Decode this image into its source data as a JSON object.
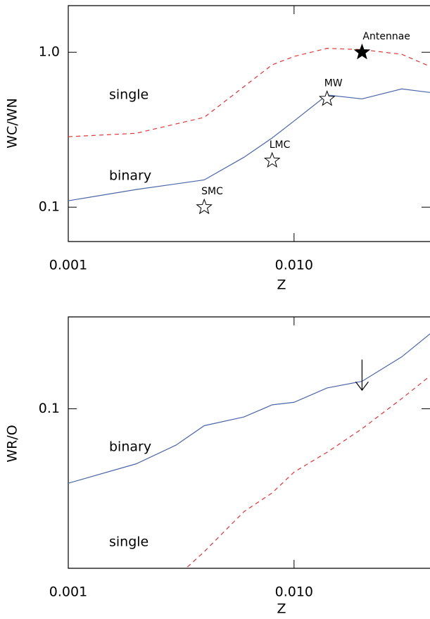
{
  "chart_data": [
    {
      "type": "line",
      "x_label": "Z",
      "y_label": "WC/WN",
      "log_x": true,
      "log_y": true,
      "xlim": [
        0.001,
        0.04
      ],
      "ylim": [
        0.06,
        2
      ],
      "xticks": [
        0.001,
        {
          "value": 0.01,
          "label": "0.010"
        }
      ],
      "yticks": [
        0.1,
        {
          "value": 1,
          "label": "1.0"
        }
      ],
      "series": [
        {
          "name": "single",
          "color": "#e03535",
          "dash": true,
          "x": [
            0.001,
            0.002,
            0.004,
            0.008,
            0.01,
            0.014,
            0.02,
            0.03,
            0.04
          ],
          "values": [
            0.285,
            0.3,
            0.38,
            0.83,
            0.94,
            1.06,
            1.04,
            0.97,
            0.81
          ]
        },
        {
          "name": "binary",
          "color": "#4a66a8",
          "dash": false,
          "x": [
            0.001,
            0.002,
            0.004,
            0.006,
            0.008,
            0.01,
            0.014,
            0.02,
            0.03,
            0.04
          ],
          "values": [
            0.11,
            0.13,
            0.15,
            0.21,
            0.28,
            0.36,
            0.53,
            0.5,
            0.58,
            0.55
          ]
        }
      ],
      "points": [
        {
          "label": "SMC",
          "x": 0.004,
          "y": 0.1,
          "filled": false
        },
        {
          "label": "LMC",
          "x": 0.008,
          "y": 0.2,
          "filled": false
        },
        {
          "label": "MW",
          "x": 0.014,
          "y": 0.5,
          "filled": false
        },
        {
          "label": "Antennae",
          "x": 0.02,
          "y": 1,
          "filled": true
        }
      ]
    },
    {
      "type": "line",
      "x_label": "Z",
      "y_label": "WR/O",
      "log_x": true,
      "log_y": true,
      "xlim": [
        0.001,
        0.04
      ],
      "ylim": [
        0.03,
        0.2
      ],
      "xticks": [
        0.001,
        {
          "value": 0.01,
          "label": "0.010"
        }
      ],
      "yticks": [
        0.1
      ],
      "series": [
        {
          "name": "binary",
          "color": "#4a66a8",
          "dash": false,
          "x": [
            0.001,
            0.002,
            0.003,
            0.004,
            0.006,
            0.008,
            0.01,
            0.014,
            0.02,
            0.03,
            0.04
          ],
          "values": [
            0.057,
            0.066,
            0.076,
            0.088,
            0.094,
            0.103,
            0.105,
            0.117,
            0.123,
            0.148,
            0.176
          ]
        },
        {
          "name": "single",
          "color": "#e03535",
          "dash": true,
          "x": [
            0.003,
            0.004,
            0.006,
            0.008,
            0.01,
            0.014,
            0.02,
            0.03,
            0.04
          ],
          "values": [
            0.028,
            0.034,
            0.046,
            0.053,
            0.062,
            0.072,
            0.086,
            0.108,
            0.128
          ]
        }
      ],
      "upper_limit": {
        "x": 0.02,
        "from": 0.145,
        "to": 0.115
      }
    }
  ]
}
